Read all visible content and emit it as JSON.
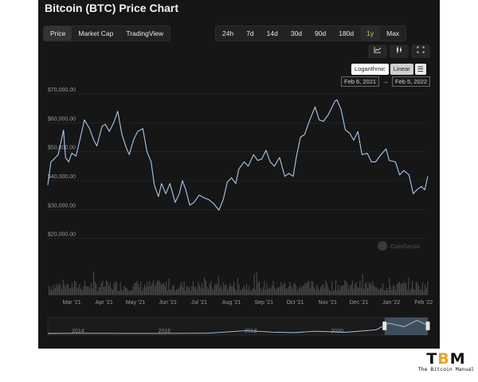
{
  "title": "Bitcoin (BTC) Price Chart",
  "view_tabs": [
    {
      "label": "Price",
      "active": true
    },
    {
      "label": "Market Cap",
      "active": false
    },
    {
      "label": "TradingView",
      "active": false
    }
  ],
  "range_tabs": [
    {
      "label": "24h",
      "active": false
    },
    {
      "label": "7d",
      "active": false
    },
    {
      "label": "14d",
      "active": false
    },
    {
      "label": "30d",
      "active": false
    },
    {
      "label": "90d",
      "active": false
    },
    {
      "label": "180d",
      "active": false
    },
    {
      "label": "1y",
      "active": true
    },
    {
      "label": "Max",
      "active": false
    }
  ],
  "tools": [
    {
      "icon": "line-chart-icon"
    },
    {
      "icon": "candlestick-icon"
    },
    {
      "icon": "fullscreen-icon"
    }
  ],
  "scale": {
    "logarithmic_label": "Logarithmic",
    "linear_label": "Linear",
    "selected": "Linear"
  },
  "date_range": {
    "from": "Feb 6, 2021",
    "to": "Feb 5, 2022"
  },
  "watermark": "CoinGecko",
  "colors": {
    "line": "#a8c8ee",
    "volume": "#4a4a4a",
    "grid": "#2a2a2a",
    "navigator_fill": "#5e7690"
  },
  "chart_data": {
    "type": "line",
    "series": [
      {
        "values": [
          [
            "2021-02-06",
            38500
          ],
          [
            "2021-02-09",
            46500
          ],
          [
            "2021-02-12",
            47500
          ],
          [
            "2021-02-16",
            49000
          ],
          [
            "2021-02-21",
            57500
          ],
          [
            "2021-02-23",
            48000
          ],
          [
            "2021-02-26",
            46500
          ],
          [
            "2021-03-01",
            49500
          ],
          [
            "2021-03-05",
            48500
          ],
          [
            "2021-03-10",
            56000
          ],
          [
            "2021-03-13",
            61000
          ],
          [
            "2021-03-18",
            58000
          ],
          [
            "2021-03-22",
            54000
          ],
          [
            "2021-03-25",
            52000
          ],
          [
            "2021-03-30",
            58800
          ],
          [
            "2021-04-02",
            59500
          ],
          [
            "2021-04-06",
            57000
          ],
          [
            "2021-04-10",
            60000
          ],
          [
            "2021-04-14",
            64000
          ],
          [
            "2021-04-18",
            56000
          ],
          [
            "2021-04-22",
            51500
          ],
          [
            "2021-04-25",
            49000
          ],
          [
            "2021-04-29",
            54000
          ],
          [
            "2021-05-03",
            57000
          ],
          [
            "2021-05-08",
            58000
          ],
          [
            "2021-05-12",
            50000
          ],
          [
            "2021-05-16",
            46500
          ],
          [
            "2021-05-19",
            38500
          ],
          [
            "2021-05-23",
            34500
          ],
          [
            "2021-05-26",
            39000
          ],
          [
            "2021-05-30",
            35500
          ],
          [
            "2021-06-03",
            39000
          ],
          [
            "2021-06-08",
            32500
          ],
          [
            "2021-06-12",
            35500
          ],
          [
            "2021-06-15",
            40000
          ],
          [
            "2021-06-18",
            37000
          ],
          [
            "2021-06-22",
            31500
          ],
          [
            "2021-06-26",
            32500
          ],
          [
            "2021-07-01",
            35000
          ],
          [
            "2021-07-06",
            34000
          ],
          [
            "2021-07-10",
            33500
          ],
          [
            "2021-07-15",
            32000
          ],
          [
            "2021-07-20",
            29800
          ],
          [
            "2021-07-24",
            33500
          ],
          [
            "2021-07-28",
            39500
          ],
          [
            "2021-08-01",
            41000
          ],
          [
            "2021-08-05",
            39000
          ],
          [
            "2021-08-08",
            44000
          ],
          [
            "2021-08-13",
            46500
          ],
          [
            "2021-08-17",
            45000
          ],
          [
            "2021-08-22",
            49000
          ],
          [
            "2021-08-26",
            47000
          ],
          [
            "2021-08-30",
            47500
          ],
          [
            "2021-09-03",
            50500
          ],
          [
            "2021-09-07",
            46500
          ],
          [
            "2021-09-11",
            45000
          ],
          [
            "2021-09-16",
            48000
          ],
          [
            "2021-09-21",
            41500
          ],
          [
            "2021-09-25",
            42500
          ],
          [
            "2021-09-29",
            41500
          ],
          [
            "2021-10-02",
            48000
          ],
          [
            "2021-10-06",
            55000
          ],
          [
            "2021-10-10",
            56000
          ],
          [
            "2021-10-15",
            61000
          ],
          [
            "2021-10-20",
            65500
          ],
          [
            "2021-10-24",
            61000
          ],
          [
            "2021-10-28",
            60500
          ],
          [
            "2021-11-02",
            63000
          ],
          [
            "2021-11-08",
            67500
          ],
          [
            "2021-11-10",
            68000
          ],
          [
            "2021-11-14",
            64500
          ],
          [
            "2021-11-18",
            57500
          ],
          [
            "2021-11-22",
            56500
          ],
          [
            "2021-11-26",
            54000
          ],
          [
            "2021-11-30",
            57000
          ],
          [
            "2021-12-04",
            49000
          ],
          [
            "2021-12-09",
            49500
          ],
          [
            "2021-12-13",
            46500
          ],
          [
            "2021-12-17",
            46500
          ],
          [
            "2021-12-21",
            48500
          ],
          [
            "2021-12-27",
            51000
          ],
          [
            "2021-12-30",
            47000
          ],
          [
            "2022-01-05",
            46500
          ],
          [
            "2022-01-09",
            42000
          ],
          [
            "2022-01-13",
            43500
          ],
          [
            "2022-01-18",
            42000
          ],
          [
            "2022-01-22",
            35500
          ],
          [
            "2022-01-26",
            37000
          ],
          [
            "2022-01-30",
            38000
          ],
          [
            "2022-02-02",
            36800
          ],
          [
            "2022-02-05",
            41500
          ]
        ]
      }
    ],
    "y_ticks": [
      "$20,000.00",
      "$30,000.00",
      "$40,000.00",
      "$50,000.00",
      "$60,000.00",
      "$70,000.00"
    ],
    "y_tick_values": [
      20000,
      30000,
      40000,
      50000,
      60000,
      70000
    ],
    "x_ticks": [
      "Mar '21",
      "Apr '21",
      "May '21",
      "Jun '21",
      "Jul '21",
      "Aug '21",
      "Sep '21",
      "Oct '21",
      "Nov '21",
      "Dec '21",
      "Jan '22",
      "Feb '22"
    ],
    "x_tick_dates": [
      "2021-03-01",
      "2021-04-01",
      "2021-05-01",
      "2021-06-01",
      "2021-07-01",
      "2021-08-01",
      "2021-09-01",
      "2021-10-01",
      "2021-11-01",
      "2021-12-01",
      "2022-01-01",
      "2022-02-01"
    ],
    "ylim": [
      10000,
      70000
    ],
    "xlim": [
      "2021-02-06",
      "2022-02-05"
    ],
    "grid": true,
    "navigator": {
      "labels": [
        "2014",
        "2016",
        "2018",
        "2020"
      ],
      "label_years": [
        2014,
        2016,
        2018,
        2020
      ],
      "range": [
        2013.3,
        2022.1
      ],
      "selected": [
        2021.1,
        2022.1
      ],
      "values": [
        [
          2013.3,
          150
        ],
        [
          2014.0,
          700
        ],
        [
          2015.0,
          300
        ],
        [
          2016.0,
          420
        ],
        [
          2017.0,
          1000
        ],
        [
          2017.9,
          14000
        ],
        [
          2018.5,
          6500
        ],
        [
          2019.0,
          3800
        ],
        [
          2019.5,
          11000
        ],
        [
          2020.2,
          6000
        ],
        [
          2020.9,
          18000
        ],
        [
          2021.2,
          50000
        ],
        [
          2021.55,
          33000
        ],
        [
          2021.85,
          64000
        ],
        [
          2022.1,
          40000
        ]
      ]
    }
  },
  "branding": {
    "logo": "TBM",
    "tagline": "The Bitcoin Manual"
  }
}
